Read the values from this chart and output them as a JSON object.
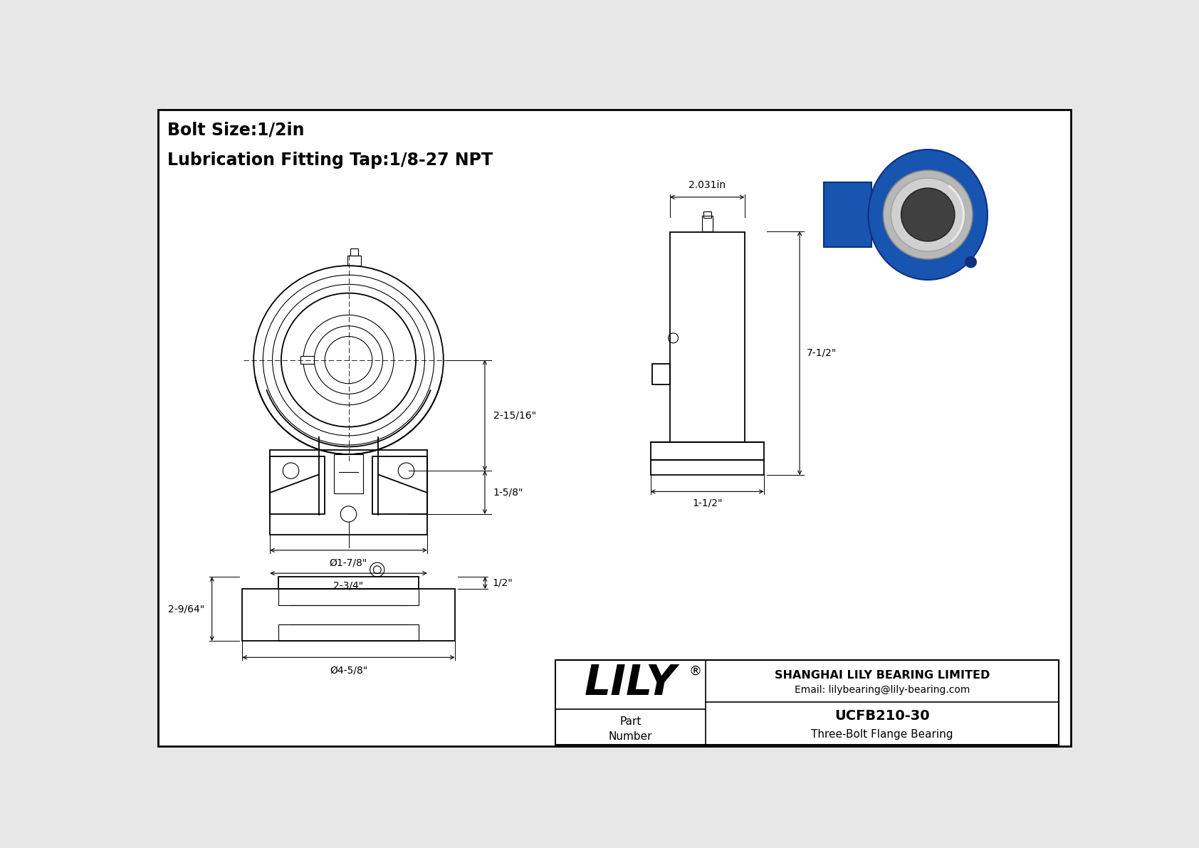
{
  "bg_color": "#e8e8e8",
  "drawing_bg": "#ffffff",
  "border_color": "#000000",
  "line_color": "#000000",
  "title_line1": "Bolt Size:1/2in",
  "title_line2": "Lubrication Fitting Tap:1/8-27 NPT",
  "part_number": "UCFB210-30",
  "part_type": "Three-Bolt Flange Bearing",
  "company": "SHANGHAI LILY BEARING LIMITED",
  "email": "Email: lilybearing@lily-bearing.com",
  "lily_text": "LILY",
  "registered": "®",
  "dim_2_15_16": "2-15/16\"",
  "dim_1_5_8": "1-5/8\"",
  "dim_2_3_4": "2-3/4\"",
  "dim_bolt_hole": "Ø1-7/8\"",
  "dim_width": "2.031in",
  "dim_height": "7-1/2\"",
  "dim_base": "1-1/2\"",
  "dim_bv_height": "2-9/64\"",
  "dim_bv_width": "Ø4-5/8\"",
  "dim_bv_thick": "1/2\""
}
